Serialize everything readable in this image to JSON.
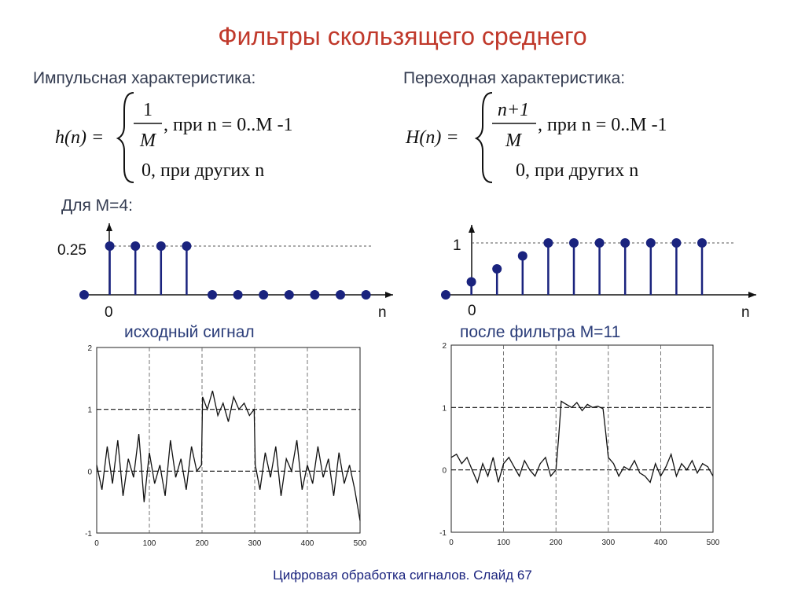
{
  "title": "Фильтры скользящего среднего",
  "impulse": {
    "label": "Импульсная характеристика:",
    "lhs": "h(n) =",
    "num": "1",
    "den": "M",
    "cond1": ", при n = 0..M -1",
    "case2": "0,  при других n"
  },
  "step": {
    "label": "Переходная характеристика:",
    "lhs": "H(n) =",
    "num": "n+1",
    "den": "M",
    "cond1": ", при n = 0..M -1",
    "case2": "0,  при других n"
  },
  "for_m": "Для M=4:",
  "stem_left": {
    "ytick": "0.25",
    "origin": "0",
    "xlabel": "n",
    "values": [
      0,
      0.25,
      0.25,
      0.25,
      0.25,
      0,
      0,
      0,
      0,
      0,
      0,
      0
    ]
  },
  "stem_right": {
    "ytick": "1",
    "origin": "0",
    "xlabel": "n",
    "values": [
      0,
      0.25,
      0.5,
      0.75,
      1,
      1,
      1,
      1,
      1,
      1,
      1
    ]
  },
  "caption_left": "исходный сигнал",
  "caption_right": "после фильтра M=11",
  "chart_data": [
    {
      "type": "line",
      "title": "исходный сигнал",
      "xlim": [
        0,
        500
      ],
      "ylim": [
        -1,
        2
      ],
      "xticks": [
        "0",
        "100",
        "200",
        "300",
        "400",
        "500"
      ],
      "yticks": [
        "-1",
        "0",
        "1",
        "2"
      ],
      "series": [
        {
          "x": [
            0,
            10,
            20,
            30,
            40,
            50,
            60,
            70,
            80,
            90,
            100,
            110,
            120,
            130,
            140,
            150,
            160,
            170,
            180,
            190,
            199,
            201,
            210,
            220,
            230,
            240,
            250,
            260,
            270,
            280,
            290,
            299,
            301,
            310,
            320,
            330,
            340,
            350,
            360,
            370,
            380,
            390,
            400,
            410,
            420,
            430,
            440,
            450,
            460,
            470,
            480,
            490,
            500
          ],
          "y": [
            0.1,
            -0.3,
            0.4,
            -0.2,
            0.5,
            -0.4,
            0.2,
            -0.1,
            0.6,
            -0.5,
            0.3,
            -0.2,
            0.1,
            -0.4,
            0.5,
            -0.1,
            0.2,
            -0.3,
            0.4,
            0.0,
            0.1,
            1.2,
            1.0,
            1.3,
            0.9,
            1.1,
            0.8,
            1.2,
            1.0,
            1.1,
            0.9,
            1.0,
            0.1,
            -0.3,
            0.3,
            -0.1,
            0.4,
            -0.4,
            0.2,
            0.0,
            0.5,
            -0.3,
            0.1,
            -0.2,
            0.4,
            -0.1,
            0.2,
            -0.4,
            0.3,
            -0.2,
            0.1,
            -0.3,
            -0.8
          ]
        }
      ]
    },
    {
      "type": "line",
      "title": "после фильтра M=11",
      "xlim": [
        0,
        500
      ],
      "ylim": [
        -1,
        2
      ],
      "xticks": [
        "0",
        "100",
        "200",
        "300",
        "400",
        "500"
      ],
      "yticks": [
        "-1",
        "0",
        "1",
        "2"
      ],
      "series": [
        {
          "x": [
            0,
            10,
            20,
            30,
            40,
            50,
            60,
            70,
            80,
            90,
            100,
            110,
            120,
            130,
            140,
            150,
            160,
            170,
            180,
            190,
            200,
            205,
            210,
            220,
            230,
            240,
            250,
            260,
            270,
            280,
            290,
            295,
            300,
            310,
            320,
            330,
            340,
            350,
            360,
            370,
            380,
            390,
            400,
            410,
            420,
            430,
            440,
            450,
            460,
            470,
            480,
            490,
            500
          ],
          "y": [
            0.2,
            0.25,
            0.1,
            0.2,
            0.0,
            -0.2,
            0.1,
            -0.1,
            0.2,
            -0.2,
            0.1,
            0.2,
            0.05,
            -0.1,
            0.15,
            0.0,
            -0.1,
            0.1,
            0.2,
            -0.1,
            0.0,
            0.5,
            1.1,
            1.05,
            1.0,
            1.08,
            0.95,
            1.05,
            1.0,
            1.02,
            0.98,
            0.6,
            0.2,
            0.1,
            -0.1,
            0.05,
            0.0,
            0.15,
            -0.05,
            -0.1,
            -0.2,
            0.1,
            -0.1,
            0.05,
            0.25,
            -0.1,
            0.1,
            0.0,
            0.15,
            -0.05,
            0.1,
            0.05,
            -0.1
          ]
        }
      ]
    }
  ],
  "footer": "Цифровая обработка сигналов.  Слайд  67",
  "colors": {
    "title": "#c0392b",
    "stem": "#1a237e",
    "caption": "#2c3e7a"
  }
}
